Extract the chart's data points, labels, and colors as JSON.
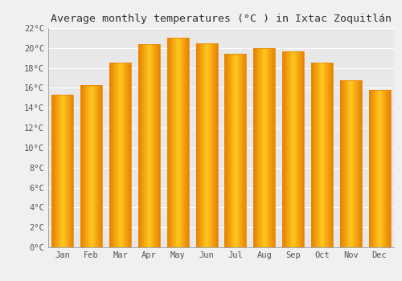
{
  "title": "Average monthly temperatures (°C ) in Ixtac Zoquitlán",
  "months": [
    "Jan",
    "Feb",
    "Mar",
    "Apr",
    "May",
    "Jun",
    "Jul",
    "Aug",
    "Sep",
    "Oct",
    "Nov",
    "Dec"
  ],
  "values": [
    15.3,
    16.3,
    18.5,
    20.4,
    21.0,
    20.5,
    19.4,
    20.0,
    19.7,
    18.5,
    16.8,
    15.8
  ],
  "bar_color_center": "#FFC820",
  "bar_color_edge": "#E88000",
  "ylim": [
    0,
    22
  ],
  "ytick_step": 2,
  "background_color": "#f0f0f0",
  "plot_bg_color": "#e8e8e8",
  "grid_color": "#ffffff",
  "title_fontsize": 9.5,
  "tick_fontsize": 7.5,
  "title_font_family": "monospace",
  "tick_font_family": "monospace"
}
